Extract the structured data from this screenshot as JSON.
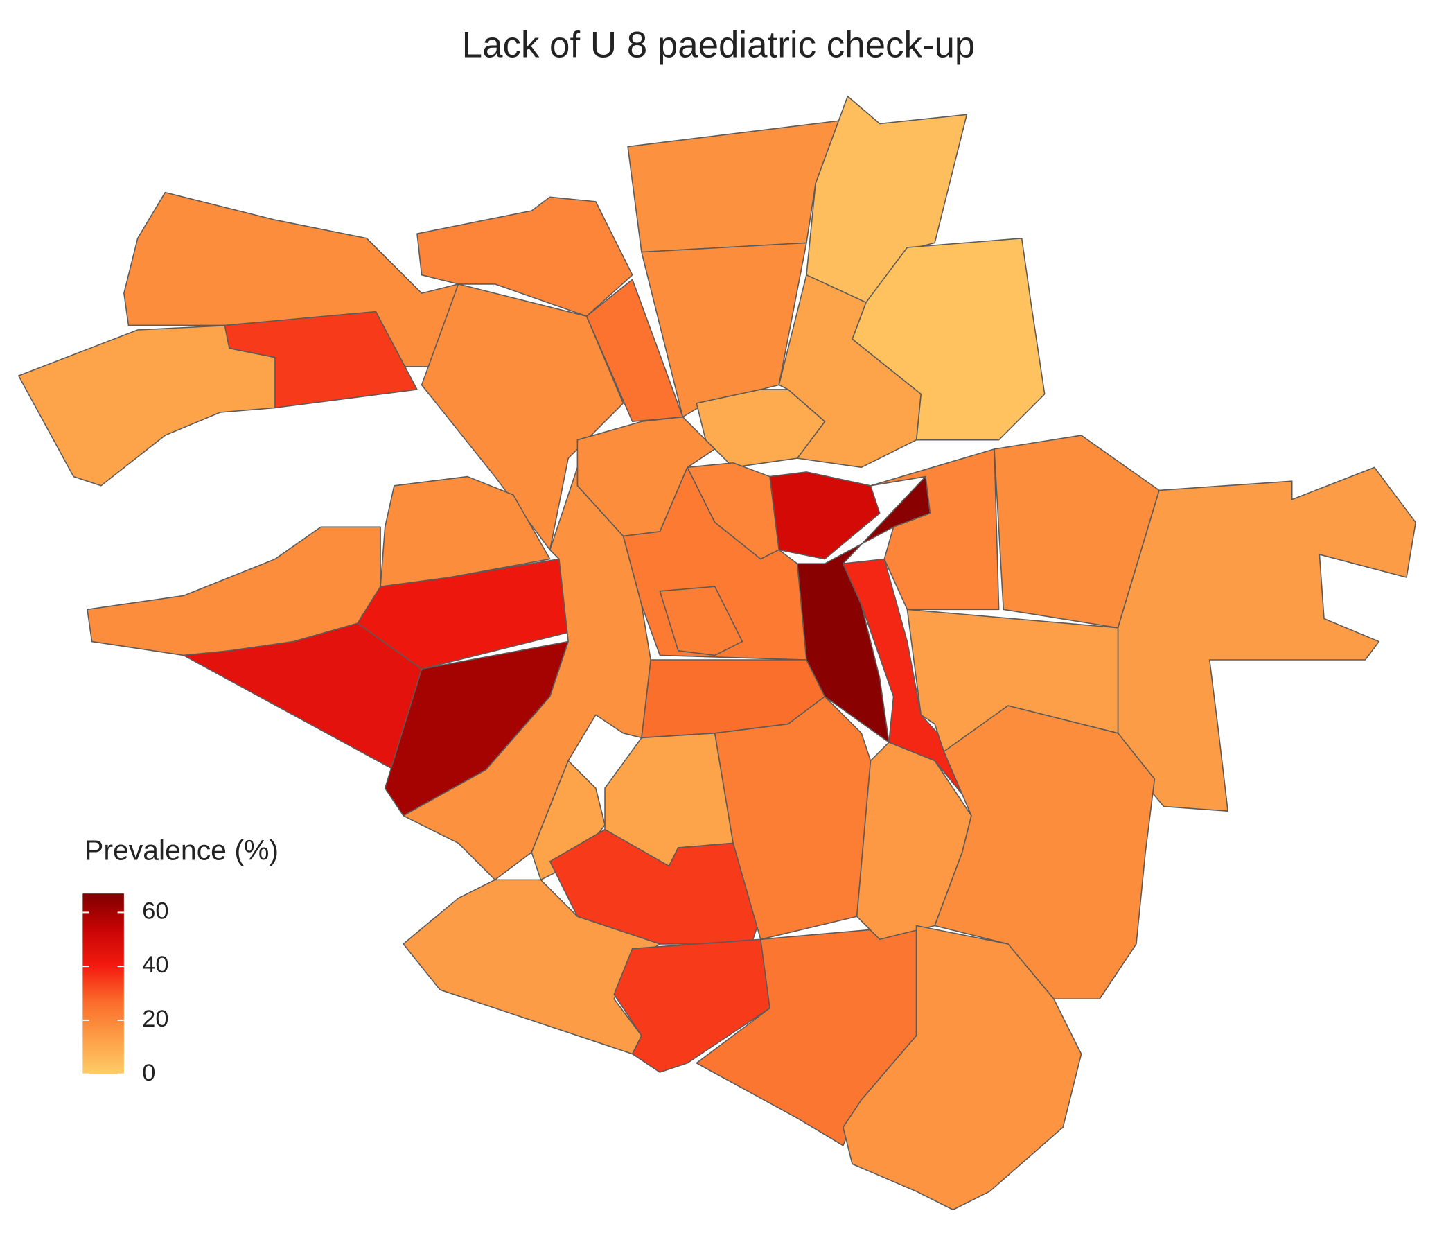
{
  "chart_data": {
    "type": "choropleth",
    "title": "Lack of U 8 paediatric check-up",
    "legend_title": "Prevalence (%)",
    "lim": [
      0,
      67
    ],
    "ticks": [
      0,
      20,
      40,
      60
    ],
    "colors": [
      "#ffcc66",
      "#fd9e47",
      "#fb6c2a",
      "#f31a10",
      "#c80404",
      "#7f0000"
    ],
    "values": [
      18,
      12,
      35,
      20,
      18,
      25,
      17,
      4,
      3,
      18,
      12,
      10,
      18,
      20,
      50,
      65,
      38,
      20,
      18,
      14,
      13,
      23,
      22,
      26,
      45,
      18,
      42,
      60,
      18,
      17,
      12,
      12,
      35,
      14,
      35,
      24,
      22,
      15,
      18,
      16
    ]
  }
}
